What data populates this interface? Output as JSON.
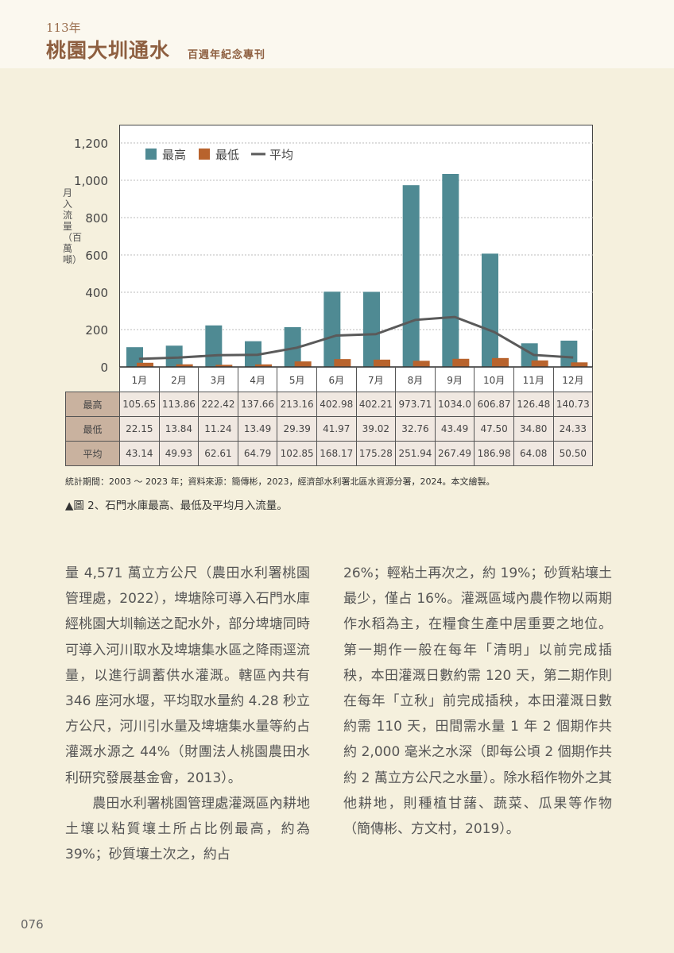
{
  "header": {
    "year": "113年",
    "title": "桃園大圳通水",
    "subtitle": "百週年紀念專刊"
  },
  "chart_data": {
    "type": "bar",
    "ylabel": "月入流量（百萬噸）",
    "ylim": [
      0,
      1200
    ],
    "yticks": [
      "0",
      "200",
      "400",
      "600",
      "800",
      "1,000",
      "1,200"
    ],
    "grid": true,
    "legend_position": "top-left",
    "categories": [
      "1月",
      "2月",
      "3月",
      "4月",
      "5月",
      "6月",
      "7月",
      "8月",
      "9月",
      "10月",
      "11月",
      "12月"
    ],
    "series": [
      {
        "name": "最高",
        "kind": "bar",
        "color": "#4f8a93",
        "values": [
          105.65,
          113.86,
          222.42,
          137.66,
          213.16,
          402.98,
          402.21,
          973.71,
          1034.0,
          606.87,
          126.48,
          140.73
        ],
        "labels": [
          "105.65",
          "113.86",
          "222.42",
          "137.66",
          "213.16",
          "402.98",
          "402.21",
          "973.71",
          "1034.0",
          "606.87",
          "126.48",
          "140.73"
        ]
      },
      {
        "name": "最低",
        "kind": "bar",
        "color": "#b8632d",
        "values": [
          22.15,
          13.84,
          11.24,
          13.49,
          29.39,
          41.97,
          39.02,
          32.76,
          43.49,
          47.5,
          34.8,
          24.33
        ],
        "labels": [
          "22.15",
          "13.84",
          "11.24",
          "13.49",
          "29.39",
          "41.97",
          "39.02",
          "32.76",
          "43.49",
          "47.50",
          "34.80",
          "24.33"
        ]
      },
      {
        "name": "平均",
        "kind": "line",
        "color": "#5a5a5a",
        "values": [
          43.14,
          49.93,
          62.61,
          64.79,
          102.85,
          168.17,
          175.28,
          251.94,
          267.49,
          186.98,
          64.08,
          50.5
        ],
        "labels": [
          "43.14",
          "49.93",
          "62.61",
          "64.79",
          "102.85",
          "168.17",
          "175.28",
          "251.94",
          "267.49",
          "186.98",
          "64.08",
          "50.50"
        ]
      }
    ]
  },
  "source": "統計期間：2003 ～ 2023 年；資料來源：簡傳彬，2023，經濟部水利署北區水資源分署，2024。本文繪製。",
  "caption": "▲圖 2、石門水庫最高、最低及平均月入流量。",
  "body_left": [
    "量 4,571 萬立方公尺（農田水利署桃園管理處，2022），埤塘除可導入石門水庫經桃園大圳輸送之配水外，部分埤塘同時可導入河川取水及埤塘集水區之降雨逕流量，以進行調蓄供水灌溉。轄區內共有 346 座河水堰，平均取水量約 4.28 秒立方公尺，河川引水量及埤塘集水量等約占灌溉水源之 44%（財團法人桃園農田水利研究發展基金會，2013）。",
    "　　農田水利署桃園管理處灌溉區內耕地土壤以粘質壤土所占比例最高，約為 39%；砂質壤土次之，約占"
  ],
  "body_right": "26%；輕粘土再次之，約 19%；砂質粘壤土最少，僅占 16%。灌溉區域內農作物以兩期作水稻為主，在糧食生產中居重要之地位。第一期作一般在每年「清明」以前完成插秧，本田灌溉日數約需 120 天，第二期作則在每年「立秋」前完成插秧，本田灌溉日數約需 110 天，田間需水量 1 年 2 個期作共約 2,000 毫米之水深（即每公頃 2 個期作共約 2 萬立方公尺之水量）。除水稻作物外之其他耕地，則種植甘藷、蔬菜、瓜果等作物（簡傳彬、方文村，2019）。",
  "page_number": "076"
}
